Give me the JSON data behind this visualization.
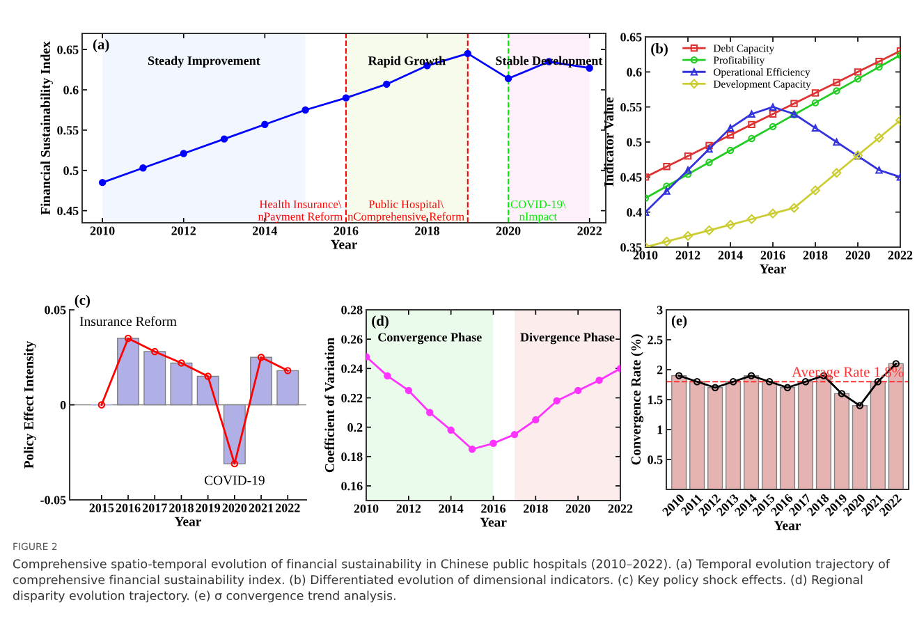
{
  "chart_data": [
    {
      "type": "line",
      "xlabel": "Year",
      "ylabel": "Financial Sustainability Index",
      "x": [
        2010,
        2011,
        2012,
        2013,
        2014,
        2015,
        2016,
        2017,
        2018,
        2019,
        2020,
        2021,
        2022
      ],
      "series": [
        {
          "color": "#0000ff",
          "values": [
            0.485,
            0.503,
            0.521,
            0.539,
            0.557,
            0.575,
            0.59,
            0.607,
            0.63,
            0.645,
            0.614,
            0.635,
            0.627
          ]
        }
      ],
      "marker": "circle",
      "line_style": "solid",
      "xlim": [
        2009.5,
        2022.4
      ],
      "ylim": [
        0.435,
        0.67
      ],
      "xticks": [
        2010,
        2012,
        2014,
        2016,
        2018,
        2020,
        2022
      ],
      "yticks": [
        0.45,
        0.5,
        0.55,
        0.6,
        0.65
      ],
      "bands": [
        {
          "axis": "x",
          "from": 2010,
          "to": 2015,
          "label": "Steady Improvement",
          "color": "#f2f7ff"
        },
        {
          "axis": "x",
          "from": 2016,
          "to": 2019,
          "label": "Rapid Growth",
          "color": "#f6fbec"
        },
        {
          "axis": "x",
          "from": 2020,
          "to": 2022,
          "label": "Stable Development",
          "color": "#fdf0fa"
        }
      ],
      "ref_lines": [
        {
          "axis": "x",
          "value": 2016,
          "label": "Health Insurance\\\nnPayment Reform",
          "color": "#ff0000",
          "line_style": "dashed"
        },
        {
          "axis": "x",
          "value": 2019,
          "label": "Public Hospital\\\nnComprehensive Reform",
          "color": "#ff0000",
          "line_style": "dashed"
        },
        {
          "axis": "x",
          "value": 2020,
          "label": "COVID-19\\\nnImpact",
          "color": "#00ee00",
          "line_style": "dashed"
        }
      ],
      "annotations": [
        "(a)"
      ],
      "grid": false,
      "legend": false
    },
    {
      "type": "line",
      "xlabel": "Year",
      "ylabel": "Indicator Value",
      "x": [
        2010,
        2011,
        2012,
        2013,
        2014,
        2015,
        2016,
        2017,
        2018,
        2019,
        2020,
        2021,
        2022
      ],
      "series": [
        {
          "name": "Debt Capacity",
          "color": "#dd3333",
          "marker": "square",
          "values": [
            0.45,
            0.465,
            0.48,
            0.495,
            0.51,
            0.525,
            0.54,
            0.555,
            0.57,
            0.585,
            0.6,
            0.615,
            0.63
          ]
        },
        {
          "name": "Profitability",
          "color": "#22cc22",
          "marker": "circle",
          "values": [
            0.42,
            0.437,
            0.454,
            0.471,
            0.488,
            0.505,
            0.522,
            0.539,
            0.556,
            0.573,
            0.59,
            0.607,
            0.624
          ]
        },
        {
          "name": "Operational Efficiency",
          "color": "#3333dd",
          "marker": "triangle",
          "values": [
            0.4,
            0.43,
            0.46,
            0.49,
            0.52,
            0.54,
            0.55,
            0.54,
            0.52,
            0.5,
            0.48,
            0.46,
            0.45
          ]
        },
        {
          "name": "Development Capacity",
          "color": "#cccc33",
          "marker": "diamond",
          "values": [
            0.35,
            0.358,
            0.366,
            0.374,
            0.382,
            0.39,
            0.398,
            0.406,
            0.431,
            0.456,
            0.481,
            0.506,
            0.531
          ]
        }
      ],
      "line_style": "solid",
      "xlim": [
        2010,
        2022
      ],
      "ylim": [
        0.35,
        0.65
      ],
      "xticks": [
        2010,
        2012,
        2014,
        2016,
        2018,
        2020,
        2022
      ],
      "yticks": [
        0.35,
        0.4,
        0.45,
        0.5,
        0.55,
        0.6,
        0.65
      ],
      "annotations": [
        "(b)"
      ],
      "grid": false,
      "legend": "top left"
    },
    {
      "type": "bar",
      "xlabel": "Year",
      "ylabel": "Policy Effect Intensity",
      "categories": [
        "2015",
        "2016",
        "2017",
        "2018",
        "2019",
        "2020",
        "2021",
        "2022"
      ],
      "series": [
        {
          "type": "bar",
          "color": "#b0b0e6",
          "values": [
            0,
            0.035,
            0.028,
            0.022,
            0.015,
            -0.031,
            0.025,
            0.018
          ]
        },
        {
          "type": "line",
          "color": "#ff0000",
          "marker": "circle",
          "values": [
            0,
            0.035,
            0.028,
            0.022,
            0.015,
            -0.031,
            0.025,
            0.018
          ]
        }
      ],
      "ylim": [
        -0.05,
        0.05
      ],
      "yticks": [
        -0.05,
        0,
        0.05
      ],
      "ref_lines": [
        {
          "axis": "y",
          "value": 0,
          "color": "#808080",
          "line_style": "solid"
        }
      ],
      "annotations": [
        "(c)",
        {
          "text": "Insurance Reform",
          "x": "2016",
          "y": 0.035
        },
        {
          "text": "COVID-19",
          "x": "2020",
          "y": -0.031
        }
      ],
      "grid": false,
      "legend": false
    },
    {
      "type": "line",
      "xlabel": "Year",
      "ylabel": "Coefficient of Variation",
      "x": [
        2010,
        2011,
        2012,
        2013,
        2014,
        2015,
        2016,
        2017,
        2018,
        2019,
        2020,
        2021,
        2022
      ],
      "series": [
        {
          "color": "#ff33ff",
          "values": [
            0.248,
            0.235,
            0.225,
            0.21,
            0.198,
            0.185,
            0.189,
            0.195,
            0.205,
            0.218,
            0.225,
            0.232,
            0.24
          ]
        }
      ],
      "marker": "circle",
      "line_style": "solid",
      "xlim": [
        2010,
        2022
      ],
      "ylim": [
        0.15,
        0.28
      ],
      "xticks": [
        2010,
        2012,
        2014,
        2016,
        2018,
        2020,
        2022
      ],
      "yticks": [
        0.16,
        0.18,
        0.2,
        0.22,
        0.24,
        0.26,
        0.28
      ],
      "bands": [
        {
          "axis": "x",
          "from": 2010,
          "to": 2016,
          "label": "Convergence Phase",
          "color": "#ebfbeb"
        },
        {
          "axis": "x",
          "from": 2017,
          "to": 2022,
          "label": "Divergence Phase",
          "color": "#fcecec"
        }
      ],
      "annotations": [
        "(d)"
      ],
      "grid": false,
      "legend": false
    },
    {
      "type": "bar",
      "xlabel": "Year",
      "ylabel": "Convergence Rate (%)",
      "categories": [
        "2010",
        "2011",
        "2012",
        "2013",
        "2014",
        "2015",
        "2016",
        "2017",
        "2018",
        "2019",
        "2020",
        "2021",
        "2022"
      ],
      "series": [
        {
          "type": "bar",
          "color": "#e6b3b3",
          "values": [
            1.9,
            1.8,
            1.7,
            1.8,
            1.9,
            1.8,
            1.7,
            1.8,
            1.9,
            1.6,
            1.4,
            1.8,
            2.1
          ]
        },
        {
          "type": "line",
          "color": "#000000",
          "marker": "circle",
          "values": [
            1.9,
            1.8,
            1.7,
            1.8,
            1.9,
            1.8,
            1.7,
            1.8,
            1.9,
            1.6,
            1.4,
            1.8,
            2.1
          ]
        }
      ],
      "ylim": [
        0,
        3
      ],
      "yticks": [
        0.5,
        1,
        1.5,
        2,
        2.5,
        3
      ],
      "ref_lines": [
        {
          "axis": "y",
          "value": 1.8,
          "label": "Average Rate 1.8%",
          "color": "#ff3333",
          "line_style": "dashed"
        }
      ],
      "annotations": [
        "(e)",
        "FIGURE 2",
        "Comprehensive spatio-temporal evolution of financial sustainability in Chinese public hospitals (2010–2022). (a) Temporal evolution trajectory of comprehensive financial sustainability index. (b) Differentiated evolution of dimensional indicators. (c) Key policy shock effects. (d) Regional disparity evolution trajectory. (e) σ convergence trend analysis."
      ],
      "grid": false,
      "legend": false
    }
  ]
}
